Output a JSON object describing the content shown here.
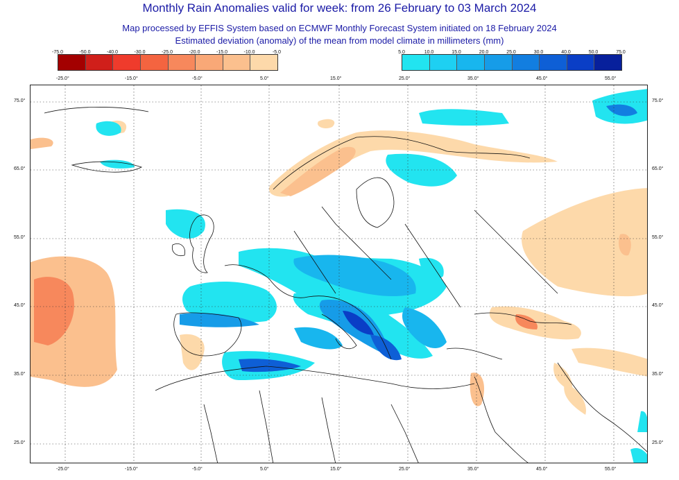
{
  "header": {
    "title": "Monthly Rain Anomalies valid for week: from 26 February to 03 March 2024",
    "subtitle1": "Map processed by EFFIS System based on ECMWF Monthly Forecast System initiated on 18 February 2024",
    "subtitle2": "Estimated deviation (anomaly) of the mean from model climate in millimeters (mm)"
  },
  "legend_negative": {
    "labels": [
      "-75.0",
      "-50.0",
      "-40.0",
      "-30.0",
      "-25.0",
      "-20.0",
      "-15.0",
      "-10.0",
      "-5.0"
    ],
    "colors": [
      "#a30000",
      "#d01f1a",
      "#ef3b2c",
      "#f46440",
      "#f7885c",
      "#f9a877",
      "#fbc08e",
      "#fdd9aa"
    ]
  },
  "legend_positive": {
    "labels": [
      "5.0",
      "10.0",
      "15.0",
      "20.0",
      "25.0",
      "30.0",
      "40.0",
      "50.0",
      "75.0"
    ],
    "colors": [
      "#22e4f0",
      "#1ed0f2",
      "#18b6ee",
      "#169ce8",
      "#127ee0",
      "#0e5fd6",
      "#0a3ec6",
      "#07209c"
    ]
  },
  "axes": {
    "x_top": [
      "-25.0°",
      "-15.0°",
      "-5.0°",
      "5.0°",
      "15.0°",
      "25.0°",
      "35.0°",
      "45.0°",
      "55.0°"
    ],
    "x_bottom": [
      "-25.0°",
      "-15.0°",
      "-5.0°",
      "5.0°",
      "15.0°",
      "25.0°",
      "35.0°",
      "45.0°",
      "55.0°"
    ],
    "y_left": [
      "75.0°",
      "65.0°",
      "55.0°",
      "45.0°",
      "35.0°",
      "25.0°"
    ],
    "y_right": [
      "75.0°",
      "65.0°",
      "55.0°",
      "45.0°",
      "35.0°",
      "25.0°"
    ]
  }
}
